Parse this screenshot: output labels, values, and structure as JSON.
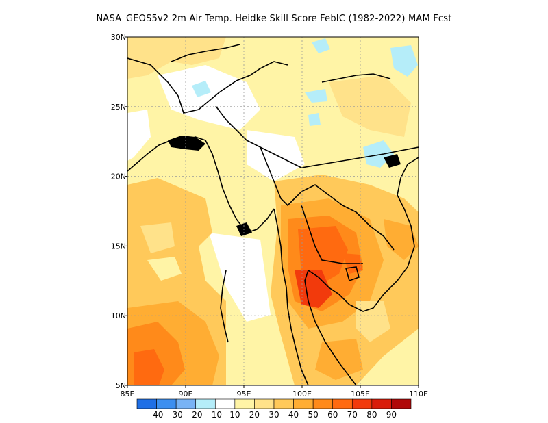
{
  "title": "NASA_GEOS5v2  2m Air Temp. Heidke Skill Score FebIC (1982-2022) MAM Fcst",
  "map": {
    "lon_range": [
      85,
      110
    ],
    "lat_range": [
      5,
      30
    ],
    "lon_ticks": [
      {
        "value": 85,
        "label": "85E"
      },
      {
        "value": 90,
        "label": "90E"
      },
      {
        "value": 95,
        "label": "95E"
      },
      {
        "value": 100,
        "label": "100E"
      },
      {
        "value": 105,
        "label": "105E"
      },
      {
        "value": 110,
        "label": "110E"
      }
    ],
    "lat_ticks": [
      {
        "value": 5,
        "label": "5N"
      },
      {
        "value": 10,
        "label": "10N"
      },
      {
        "value": 15,
        "label": "15N"
      },
      {
        "value": 20,
        "label": "20N"
      },
      {
        "value": 25,
        "label": "25N"
      },
      {
        "value": 30,
        "label": "30N"
      }
    ],
    "grid": true
  },
  "colorbar": {
    "colors": [
      "#1f6fe6",
      "#3d8ff0",
      "#78b3f5",
      "#b5edf9",
      "#ffffff",
      "#fff4a6",
      "#ffe28a",
      "#ffc95a",
      "#ffad33",
      "#ff8a1a",
      "#ff6a10",
      "#f23a0c",
      "#d91c0a",
      "#b00808"
    ],
    "labels": [
      "-40",
      "-30",
      "-20",
      "-10",
      "10",
      "20",
      "30",
      "40",
      "50",
      "60",
      "70",
      "80",
      "90"
    ]
  }
}
